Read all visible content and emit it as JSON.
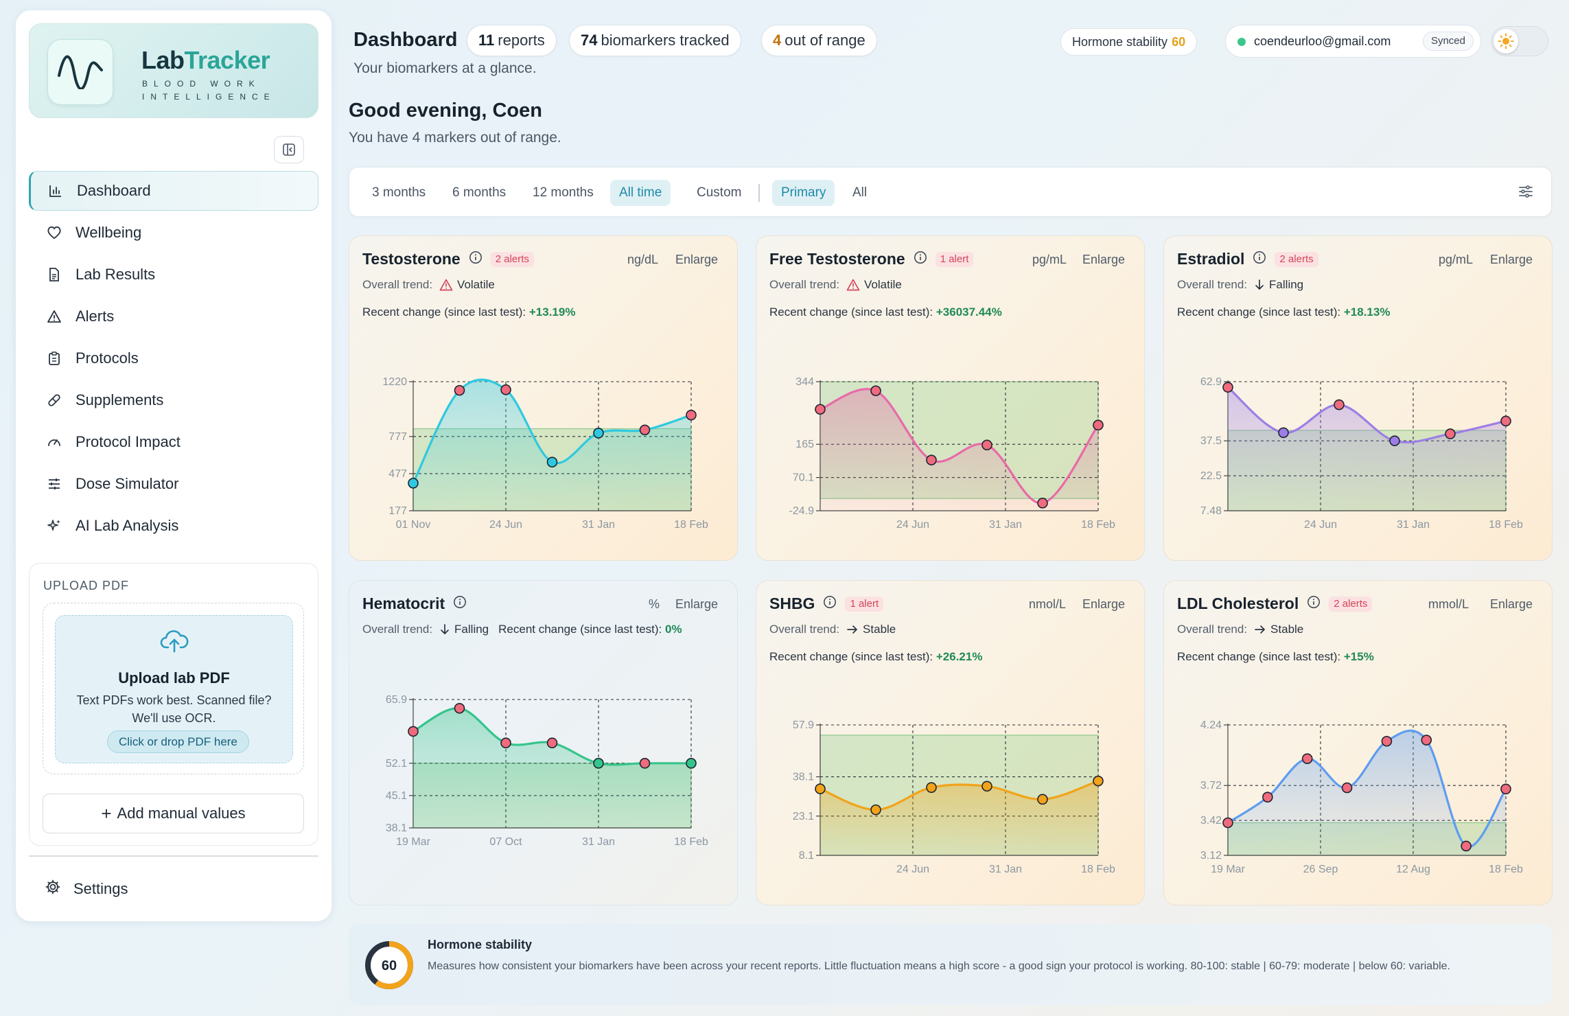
{
  "brand": {
    "name_part1": "Lab",
    "name_part2": "Tracker",
    "tagline": "Blood work intelligence",
    "accent": "#2aa597"
  },
  "sidebar": {
    "items": [
      {
        "label": "Dashboard",
        "icon": "bar-chart-icon",
        "active": true
      },
      {
        "label": "Wellbeing",
        "icon": "heart-icon"
      },
      {
        "label": "Lab Results",
        "icon": "document-icon"
      },
      {
        "label": "Alerts",
        "icon": "warning-icon"
      },
      {
        "label": "Protocols",
        "icon": "clipboard-icon"
      },
      {
        "label": "Supplements",
        "icon": "pill-icon"
      },
      {
        "label": "Protocol Impact",
        "icon": "gauge-icon"
      },
      {
        "label": "Dose Simulator",
        "icon": "sliders-icon"
      },
      {
        "label": "AI Lab Analysis",
        "icon": "sparkles-icon"
      }
    ],
    "upload": {
      "heading": "UPLOAD PDF",
      "title": "Upload lab PDF",
      "description": "Text PDFs work best. Scanned file? We'll use OCR.",
      "cta": "Click or drop PDF here"
    },
    "manual_button": "Add manual values",
    "settings": "Settings"
  },
  "header": {
    "title": "Dashboard",
    "subtitle": "Your biomarkers at a glance.",
    "chips": [
      {
        "count": "11",
        "label": "reports"
      },
      {
        "count": "74",
        "label": "biomarkers tracked"
      },
      {
        "count": "4",
        "label": "out of range"
      }
    ],
    "hormone_stability_label": "Hormone stability",
    "hormone_stability_value": "60",
    "email": "coendeurloo@gmail.com",
    "sync_status": "Synced"
  },
  "greeting": {
    "title": "Good evening, Coen",
    "subtitle": "You have 4 markers out of range."
  },
  "filters": {
    "ranges": [
      "3 months",
      "6 months",
      "12 months",
      "All time",
      "Custom"
    ],
    "active_range": "All time",
    "sets": [
      "Primary",
      "All"
    ],
    "active_set": "Primary"
  },
  "cards": [
    {
      "name": "Testosterone",
      "alerts": "2 alerts",
      "unit": "ng/dL",
      "enlarge": "Enlarge",
      "trend_label": "Overall trend:",
      "trend": "Volatile",
      "trend_icon": "warning",
      "recent_label": "Recent change (since last test):",
      "recent_value": "+13.19%",
      "color": "#2ec9e0",
      "theme": "warm",
      "chart_data": {
        "type": "line",
        "y_ticks": [
          "1220",
          "777",
          "477",
          "177"
        ],
        "y_tick_values": [
          1220,
          777,
          477,
          177
        ],
        "x_ticks": [
          "01 Nov",
          "24 Jun",
          "31 Jan",
          "18 Feb"
        ],
        "ylim": [
          177,
          1220
        ],
        "range": [
          177,
          840
        ],
        "values": [
          400,
          1150,
          1155,
          570,
          805,
          830,
          950
        ],
        "point_status": [
          "in",
          "out",
          "out",
          "in",
          "in",
          "out",
          "out"
        ]
      }
    },
    {
      "name": "Free Testosterone",
      "alerts": "1 alert",
      "unit": "pg/mL",
      "enlarge": "Enlarge",
      "trend_label": "Overall trend:",
      "trend": "Volatile",
      "trend_icon": "warning",
      "recent_label": "Recent change (since last test):",
      "recent_value": "+36037.44%",
      "color": "#e86aa8",
      "theme": "warm",
      "chart_data": {
        "type": "line",
        "y_ticks": [
          "344",
          "165",
          "70.1",
          "-24.9"
        ],
        "y_tick_values": [
          344,
          165,
          70.1,
          -24.9
        ],
        "x_ticks": [
          "24 Jun",
          "31 Jan",
          "18 Feb"
        ],
        "ylim": [
          -24.9,
          344
        ],
        "range": [
          10,
          344
        ],
        "values": [
          265,
          318,
          120,
          163,
          -3,
          220
        ],
        "point_status": [
          "out",
          "out",
          "out",
          "out",
          "out",
          "out"
        ]
      }
    },
    {
      "name": "Estradiol",
      "alerts": "2 alerts",
      "unit": "pg/mL",
      "enlarge": "Enlarge",
      "trend_label": "Overall trend:",
      "trend": "Falling",
      "trend_icon": "down",
      "recent_label": "Recent change (since last test):",
      "recent_value": "+18.13%",
      "color": "#9c7ee6",
      "theme": "warm",
      "chart_data": {
        "type": "line",
        "y_ticks": [
          "62.9",
          "37.5",
          "22.5",
          "7.48"
        ],
        "y_tick_values": [
          62.9,
          37.5,
          22.5,
          7.48
        ],
        "x_ticks": [
          "24 Jun",
          "31 Jan",
          "18 Feb"
        ],
        "ylim": [
          7.48,
          62.9
        ],
        "range": [
          7.48,
          42
        ],
        "values": [
          60.5,
          41,
          53,
          37.5,
          40.5,
          46
        ],
        "point_status": [
          "out",
          "in",
          "out",
          "in",
          "out",
          "out"
        ]
      }
    },
    {
      "name": "Hematocrit",
      "alerts": "",
      "unit": "%",
      "enlarge": "Enlarge",
      "trend_label": "Overall trend:",
      "trend": "Falling",
      "trend_icon": "down",
      "recent_label": "Recent change (since last test):",
      "recent_value": "0%",
      "color": "#35c48c",
      "theme": "cool",
      "chart_data": {
        "type": "line",
        "y_ticks": [
          "65.9",
          "52.1",
          "45.1",
          "38.1"
        ],
        "y_tick_values": [
          65.9,
          52.1,
          45.1,
          38.1
        ],
        "x_ticks": [
          "19 Mar",
          "07 Oct",
          "31 Jan",
          "18 Feb"
        ],
        "ylim": [
          38.1,
          65.9
        ],
        "range": [
          38.1,
          52.1
        ],
        "values": [
          59,
          64,
          56.5,
          56.5,
          52.1,
          52.1,
          52.1
        ],
        "point_status": [
          "out",
          "out",
          "out",
          "out",
          "in",
          "out",
          "in"
        ]
      }
    },
    {
      "name": "SHBG",
      "alerts": "1 alert",
      "unit": "nmol/L",
      "enlarge": "Enlarge",
      "trend_label": "Overall trend:",
      "trend": "Stable",
      "trend_icon": "right",
      "recent_label": "Recent change (since last test):",
      "recent_value": "+26.21%",
      "color": "#f2a31a",
      "theme": "warm",
      "chart_data": {
        "type": "line",
        "y_ticks": [
          "57.9",
          "38.1",
          "23.1",
          "8.1"
        ],
        "y_tick_values": [
          57.9,
          38.1,
          23.1,
          8.1
        ],
        "x_ticks": [
          "24 Jun",
          "31 Jan",
          "18 Feb"
        ],
        "ylim": [
          8.1,
          57.9
        ],
        "range": [
          8.1,
          54
        ],
        "values": [
          33.5,
          25.5,
          34,
          34.5,
          29.5,
          36.5
        ],
        "point_status": [
          "in",
          "in",
          "in",
          "in",
          "in",
          "in"
        ]
      }
    },
    {
      "name": "LDL Cholesterol",
      "alerts": "2 alerts",
      "unit": "mmol/L",
      "enlarge": "Enlarge",
      "trend_label": "Overall trend:",
      "trend": "Stable",
      "trend_icon": "right",
      "recent_label": "Recent change (since last test):",
      "recent_value": "+15%",
      "color": "#5e9df0",
      "theme": "warm",
      "chart_data": {
        "type": "line",
        "y_ticks": [
          "4.24",
          "3.72",
          "3.42",
          "3.12"
        ],
        "y_tick_values": [
          4.24,
          3.72,
          3.42,
          3.12
        ],
        "x_ticks": [
          "19 Mar",
          "26 Sep",
          "12 Aug",
          "18 Feb"
        ],
        "ylim": [
          3.12,
          4.24
        ],
        "range": [
          3.12,
          3.4
        ],
        "values": [
          3.4,
          3.62,
          3.95,
          3.7,
          4.1,
          4.11,
          3.2,
          3.69
        ],
        "point_status": [
          "out",
          "out",
          "out",
          "out",
          "out",
          "out",
          "out",
          "out"
        ]
      }
    }
  ],
  "stability": {
    "title": "Hormone stability",
    "value": "60",
    "score": 60,
    "description": "Measures how consistent your biomarkers have been across your recent reports. Little fluctuation means a high score - a good sign your protocol is working. 80-100: stable | 60-79: moderate | below 60: variable."
  }
}
